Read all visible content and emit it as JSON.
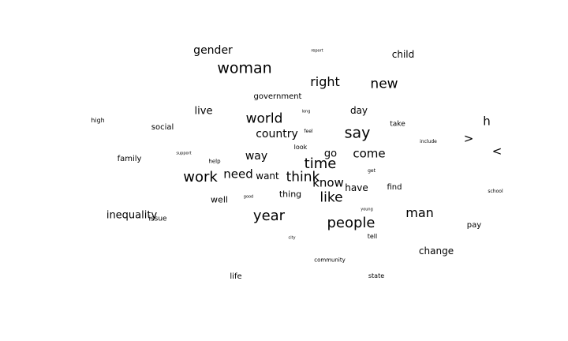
{
  "text_color": "#000000",
  "background": "#ffffff",
  "words": [
    {
      "text": "gender",
      "weight": 0.55
    },
    {
      "text": "woman",
      "weight": 0.9
    },
    {
      "text": "report",
      "weight": 0.1
    },
    {
      "text": "child",
      "weight": 0.52
    },
    {
      "text": "right",
      "weight": 0.74
    },
    {
      "text": "new",
      "weight": 0.78
    },
    {
      "text": "government",
      "weight": 0.45
    },
    {
      "text": "live",
      "weight": 0.6
    },
    {
      "text": "day",
      "weight": 0.55
    },
    {
      "text": "high",
      "weight": 0.38
    },
    {
      "text": "world",
      "weight": 0.8
    },
    {
      "text": "long",
      "weight": 0.12
    },
    {
      "text": "social",
      "weight": 0.45
    },
    {
      "text": "country",
      "weight": 0.62
    },
    {
      "text": "feel",
      "weight": 0.15
    },
    {
      "text": "say",
      "weight": 0.9
    },
    {
      "text": "take",
      "weight": 0.4
    },
    {
      "text": "h",
      "weight": 0.7
    },
    {
      "text": "include",
      "weight": 0.16
    },
    {
      "text": ">",
      "weight": 0.72
    },
    {
      "text": "look",
      "weight": 0.36
    },
    {
      "text": "support",
      "weight": 0.12
    },
    {
      "text": "way",
      "weight": 0.62
    },
    {
      "text": "go",
      "weight": 0.58
    },
    {
      "text": "come",
      "weight": 0.7
    },
    {
      "text": "<",
      "weight": 0.72
    },
    {
      "text": "family",
      "weight": 0.46
    },
    {
      "text": "help",
      "weight": 0.28
    },
    {
      "text": "time",
      "weight": 0.86
    },
    {
      "text": "get",
      "weight": 0.24
    },
    {
      "text": "need",
      "weight": 0.72
    },
    {
      "text": "work",
      "weight": 0.88
    },
    {
      "text": "want",
      "weight": 0.6
    },
    {
      "text": "think",
      "weight": 0.82
    },
    {
      "text": "know",
      "weight": 0.72
    },
    {
      "text": "have",
      "weight": 0.56
    },
    {
      "text": "find",
      "weight": 0.44
    },
    {
      "text": "school",
      "weight": 0.18
    },
    {
      "text": "thing",
      "weight": 0.5
    },
    {
      "text": "like",
      "weight": 0.78
    },
    {
      "text": "well",
      "weight": 0.5
    },
    {
      "text": "good",
      "weight": 0.12
    },
    {
      "text": "young",
      "weight": 0.14
    },
    {
      "text": "year",
      "weight": 0.86
    },
    {
      "text": "man",
      "weight": 0.76
    },
    {
      "text": "inequality",
      "weight": 0.6
    },
    {
      "text": "issue",
      "weight": 0.38
    },
    {
      "text": "people",
      "weight": 0.86
    },
    {
      "text": "pay",
      "weight": 0.44
    },
    {
      "text": "tell",
      "weight": 0.2
    },
    {
      "text": "city",
      "weight": 0.08
    },
    {
      "text": "change",
      "weight": 0.54
    },
    {
      "text": "community",
      "weight": 0.26
    },
    {
      "text": "life",
      "weight": 0.46
    },
    {
      "text": "state",
      "weight": 0.34
    }
  ]
}
